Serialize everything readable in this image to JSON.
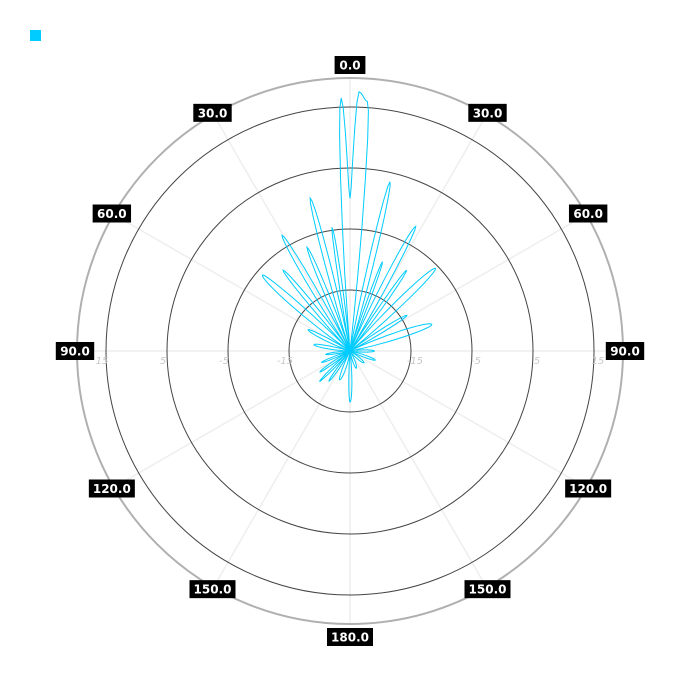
{
  "chart_data": {
    "type": "polar-line",
    "title": "",
    "angle_zero": "top",
    "angle_direction": "clockwise",
    "angle_ticks": [
      {
        "angle": 0,
        "label": "0.0"
      },
      {
        "angle": 30,
        "label": "30.0"
      },
      {
        "angle": 60,
        "label": "60.0"
      },
      {
        "angle": 90,
        "label": "90.0"
      },
      {
        "angle": 120,
        "label": "120.0"
      },
      {
        "angle": 150,
        "label": "150.0"
      },
      {
        "angle": 180,
        "label": "180.0"
      },
      {
        "angle": -150,
        "label": "150.0"
      },
      {
        "angle": -120,
        "label": "120.0"
      },
      {
        "angle": -90,
        "label": "90.0"
      },
      {
        "angle": -60,
        "label": "60.0"
      },
      {
        "angle": -30,
        "label": "30.0"
      }
    ],
    "radial_ticks": [
      -15,
      -5,
      5,
      15
    ],
    "radial_tick_labels": [
      "-15",
      "-5",
      "5",
      "15"
    ],
    "rlim": [
      -25,
      20
    ],
    "grid": true,
    "legend": {
      "placement": "top-left",
      "entries": [
        {
          "name": "",
          "color": "#00ccff"
        }
      ]
    },
    "series": [
      {
        "color": "#00ccff",
        "points": [
          [
            -180,
            -16.6
          ],
          [
            -175,
            -25
          ],
          [
            -160,
            -20
          ],
          [
            -152,
            -25
          ],
          [
            -145,
            -19
          ],
          [
            -140,
            -25
          ],
          [
            -135,
            -18
          ],
          [
            -130,
            -25
          ],
          [
            -125,
            -19
          ],
          [
            -118,
            -25
          ],
          [
            -112,
            -20
          ],
          [
            -105,
            -25
          ],
          [
            -98,
            -21
          ],
          [
            -90,
            -25
          ],
          [
            -80,
            -19
          ],
          [
            -72,
            -25
          ],
          [
            -63,
            -17.3
          ],
          [
            -57,
            -25
          ],
          [
            -49,
            -6
          ],
          [
            -44,
            -25
          ],
          [
            -39.6,
            -7.8
          ],
          [
            -35,
            -25
          ],
          [
            -30.4,
            -3
          ],
          [
            -26,
            -25
          ],
          [
            -22.5,
            -6.6
          ],
          [
            -18,
            -25
          ],
          [
            -14.6,
            0.9
          ],
          [
            -10.5,
            -25
          ],
          [
            -8.3,
            -4.5
          ],
          [
            -5,
            -25
          ],
          [
            -2,
            16.5
          ],
          [
            0,
            0
          ],
          [
            2,
            17.5
          ],
          [
            4,
            16
          ],
          [
            7,
            -25
          ],
          [
            10,
            -25
          ],
          [
            13.3,
            3.5
          ],
          [
            17,
            -25
          ],
          [
            20,
            -9.4
          ],
          [
            23,
            -25
          ],
          [
            27.8,
            -1.9
          ],
          [
            31.5,
            -25
          ],
          [
            35,
            -8.8
          ],
          [
            39,
            -25
          ],
          [
            46,
            -5.5
          ],
          [
            52,
            -25
          ],
          [
            58,
            -14
          ],
          [
            63,
            -25
          ],
          [
            72,
            -10.9
          ],
          [
            80,
            -25
          ],
          [
            90,
            -21
          ],
          [
            100,
            -25
          ],
          [
            110,
            -20.6
          ],
          [
            118,
            -25
          ],
          [
            130,
            -22
          ],
          [
            145,
            -25
          ],
          [
            160,
            -22
          ],
          [
            172,
            -25
          ],
          [
            180,
            -16.6
          ]
        ]
      }
    ]
  }
}
